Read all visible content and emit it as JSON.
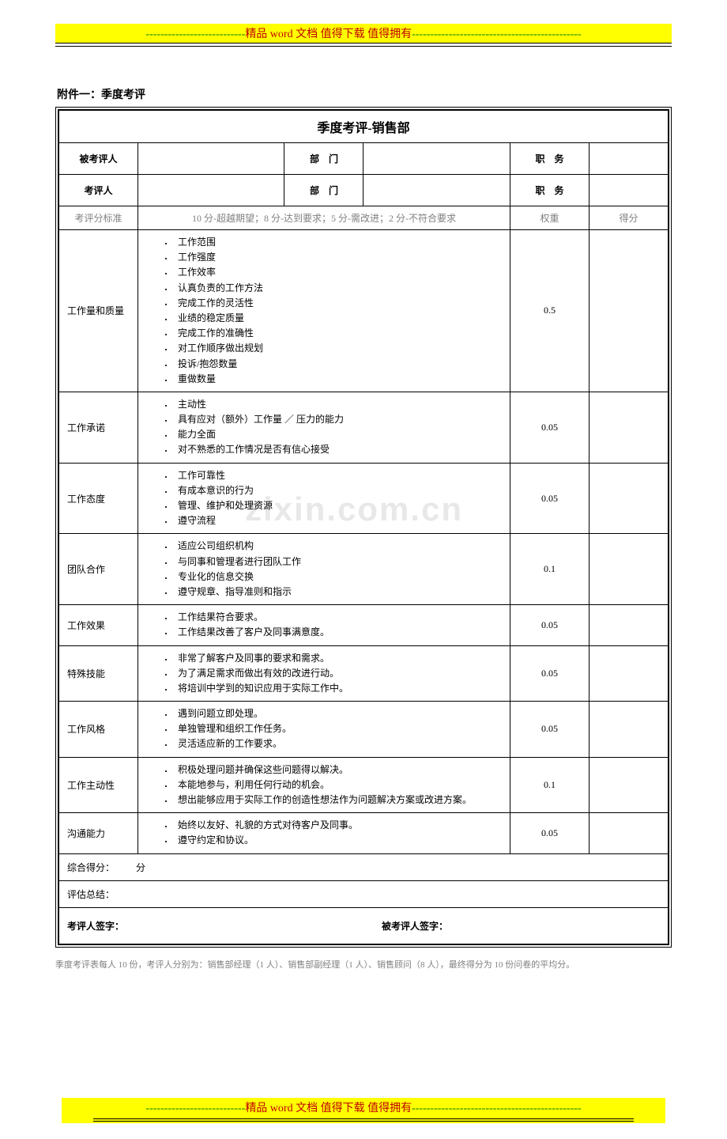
{
  "banner": {
    "dashes_left": "---------------------------",
    "text_part1": "精品 word 文档",
    "text_part2": "  值得下载  值得拥有",
    "dashes_right": "----------------------------------------------"
  },
  "attachment_title": "附件一：季度考评",
  "table": {
    "title": "季度考评-销售部",
    "row1": {
      "l1": "被考评人",
      "l2": "部　门",
      "l3": "职　务"
    },
    "row2": {
      "l1": "考评人",
      "l2": "部　门",
      "l3": "职　务"
    },
    "std_row": {
      "label": "考评分标准",
      "desc": "10 分-超越期望；8 分-达到要求；5 分-需改进；2 分-不符合要求",
      "weight": "权重",
      "score": "得分"
    },
    "criteria": [
      {
        "label": "工作量和质量",
        "items": [
          "工作范围",
          "工作强度",
          "工作效率",
          "认真负责的工作方法",
          "完成工作的灵活性",
          "业绩的稳定质量",
          "完成工作的准确性",
          "对工作顺序做出规划",
          "投诉/抱怨数量",
          "重做数量"
        ],
        "weight": "0.5"
      },
      {
        "label": "工作承诺",
        "items": [
          "主动性",
          "具有应对（额外）工作量 ／ 压力的能力",
          "能力全面",
          "对不熟悉的工作情况是否有信心接受"
        ],
        "weight": "0.05"
      },
      {
        "label": "工作态度",
        "items": [
          "工作可靠性",
          "有成本意识的行为",
          "管理、维护和处理资源",
          "遵守流程"
        ],
        "weight": "0.05"
      },
      {
        "label": "团队合作",
        "items": [
          "适应公司组织机构",
          "与同事和管理者进行团队工作",
          "专业化的信息交换",
          "遵守规章、指导准则和指示"
        ],
        "weight": "0.1"
      },
      {
        "label": "工作效果",
        "items": [
          "工作结果符合要求。",
          "工作结果改善了客户及同事满意度。"
        ],
        "weight": "0.05"
      },
      {
        "label": "特殊技能",
        "items": [
          "非常了解客户及同事的要求和需求。",
          "为了满足需求而做出有效的改进行动。",
          "将培训中学到的知识应用于实际工作中。"
        ],
        "weight": "0.05"
      },
      {
        "label": "工作风格",
        "items": [
          "遇到问题立即处理。",
          "单独管理和组织工作任务。",
          "灵活适应新的工作要求。"
        ],
        "weight": "0.05"
      },
      {
        "label": "工作主动性",
        "items": [
          "积极处理问题并确保这些问题得以解决。",
          "本能地参与，利用任何行动的机会。",
          "想出能够应用于实际工作的创造性想法作为问题解决方案或改进方案。"
        ],
        "weight": "0.1"
      },
      {
        "label": "沟通能力",
        "items": [
          "始终以友好、礼貌的方式对待客户及同事。",
          "遵守约定和协议。"
        ],
        "weight": "0.05"
      }
    ],
    "summary1": {
      "label": "综合得分：",
      "unit": "分"
    },
    "summary2": {
      "label": "评估总结："
    },
    "sign": {
      "left": "考评人签字：",
      "right": "被考评人签字："
    }
  },
  "footnote": "季度考评表每人 10 份，考评人分别为：销售部经理（1 人）、销售部副经理（1 人）、销售顾问（8 人），最终得分为 10 份问卷的平均分。",
  "watermark": "zixin.com.cn",
  "colors": {
    "highlight": "#ffff00",
    "green": "#008000",
    "red": "#c00000",
    "gray": "#808080",
    "watermark": "#e8e8e8"
  }
}
